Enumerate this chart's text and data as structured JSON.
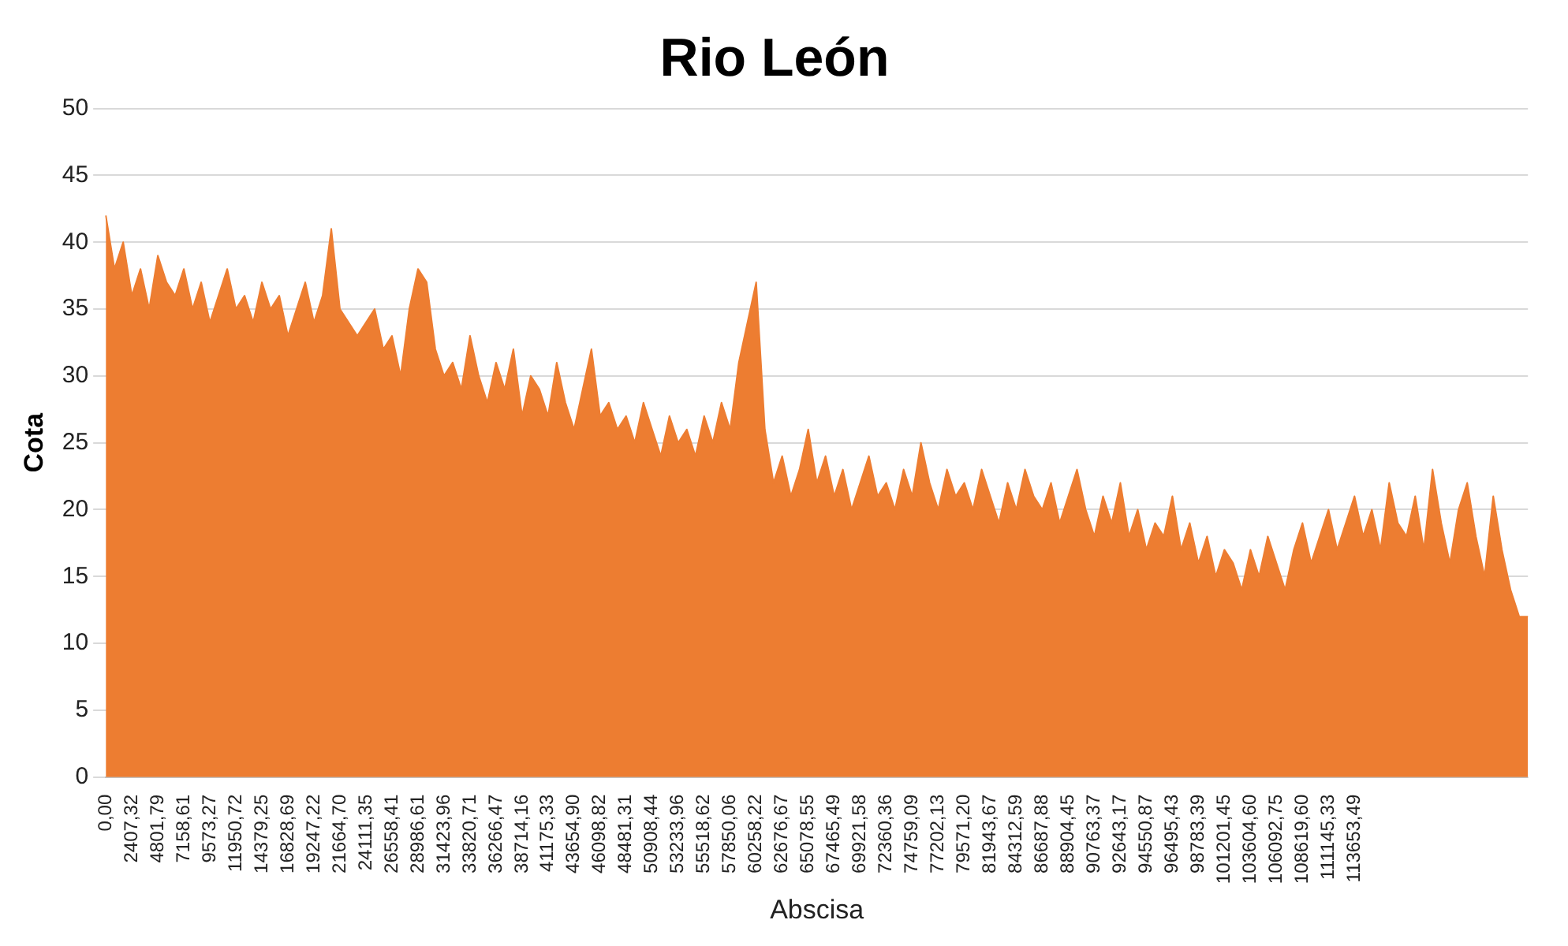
{
  "chart_data": {
    "type": "area",
    "title": "Rio León",
    "xlabel": "Abscisa",
    "ylabel": "Cota",
    "categories": [
      "0,00",
      null,
      null,
      "2407,32",
      null,
      null,
      "4801,79",
      null,
      null,
      "7158,61",
      null,
      null,
      "9573,27",
      null,
      null,
      "11950,72",
      null,
      null,
      "14379,25",
      null,
      null,
      "16828,69",
      null,
      null,
      "19247,22",
      null,
      null,
      "21664,70",
      null,
      null,
      "24111,35",
      null,
      null,
      "26558,41",
      null,
      null,
      "28986,61",
      null,
      null,
      "31423,96",
      null,
      null,
      "33820,71",
      null,
      null,
      "36266,47",
      null,
      null,
      "38714,16",
      null,
      null,
      "41175,33",
      null,
      null,
      "43654,90",
      null,
      null,
      "46098,82",
      null,
      null,
      "48481,31",
      null,
      null,
      "50908,44",
      null,
      null,
      "53233,96",
      null,
      null,
      "55518,62",
      null,
      null,
      "57850,06",
      null,
      null,
      "60258,22",
      null,
      null,
      "62676,67",
      null,
      null,
      "65078,55",
      null,
      null,
      "67465,49",
      null,
      null,
      "69921,58",
      null,
      null,
      "72360,36",
      null,
      null,
      "74759,09",
      null,
      null,
      "77202,13",
      null,
      null,
      "79571,20",
      null,
      null,
      "81943,67",
      null,
      null,
      "84312,59",
      null,
      null,
      "86687,88",
      null,
      null,
      "88904,45",
      null,
      null,
      "90763,37",
      null,
      null,
      "92643,17",
      null,
      null,
      "94550,87",
      null,
      null,
      "96495,43",
      null,
      null,
      "98783,39",
      null,
      null,
      "101201,45",
      null,
      null,
      "103604,60",
      null,
      null,
      "106092,75",
      null,
      null,
      "108619,60",
      null,
      null,
      "111145,33",
      null,
      null,
      "113653,49",
      null,
      null,
      null,
      null,
      null,
      null,
      null,
      null,
      null,
      null,
      null,
      null,
      null,
      null,
      null,
      null,
      null,
      null,
      null,
      null
    ],
    "series": [
      {
        "color": "#ed7d31",
        "values": [
          42,
          38,
          40,
          36,
          38,
          35,
          39,
          37,
          36,
          38,
          35,
          37,
          34,
          36,
          38,
          35,
          36,
          34,
          37,
          35,
          36,
          33,
          35,
          37,
          34,
          36,
          41,
          35,
          34,
          33,
          34,
          35,
          32,
          33,
          30,
          35,
          38,
          37,
          32,
          30,
          31,
          29,
          33,
          30,
          28,
          31,
          29,
          32,
          27,
          30,
          29,
          27,
          31,
          28,
          26,
          29,
          32,
          27,
          28,
          26,
          27,
          25,
          28,
          26,
          24,
          27,
          25,
          26,
          24,
          27,
          25,
          28,
          26,
          31,
          34,
          37,
          26,
          22,
          24,
          21,
          23,
          26,
          22,
          24,
          21,
          23,
          20,
          22,
          24,
          21,
          22,
          20,
          23,
          21,
          25,
          22,
          20,
          23,
          21,
          22,
          20,
          23,
          21,
          19,
          22,
          20,
          23,
          21,
          20,
          22,
          19,
          21,
          23,
          20,
          18,
          21,
          19,
          22,
          18,
          20,
          17,
          19,
          18,
          21,
          17,
          19,
          16,
          18,
          15,
          17,
          16,
          14,
          17,
          15,
          18,
          16,
          14,
          17,
          19,
          16,
          18,
          20,
          17,
          19,
          21,
          18,
          20,
          17,
          22,
          19,
          18,
          21,
          17,
          23,
          19,
          16,
          20,
          22,
          18,
          15,
          21,
          17,
          14,
          12,
          12
        ]
      }
    ],
    "ylim": [
      0,
      50
    ],
    "yticks": [
      0,
      5,
      10,
      15,
      20,
      25,
      30,
      35,
      40,
      45,
      50
    ],
    "grid": "y",
    "legend": false
  }
}
